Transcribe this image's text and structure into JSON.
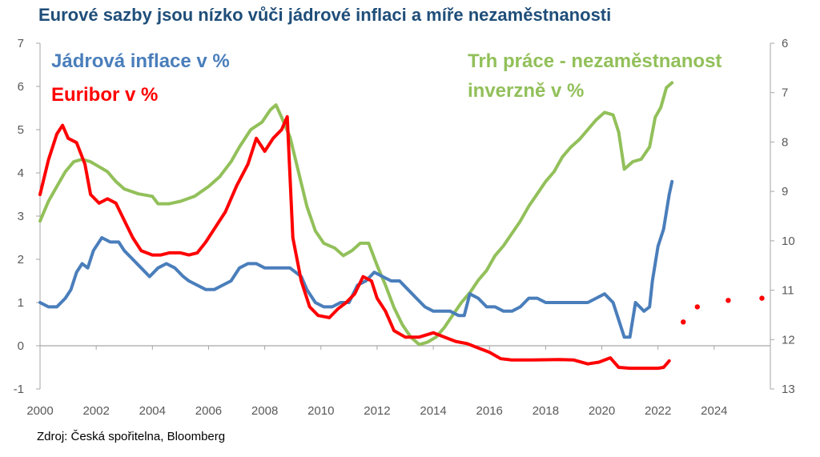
{
  "title": "Eurové sazby jsou nízko vůči jádrové inflaci a míře nezaměstnanosti",
  "source": "Zdroj: Česká spořitelna, Bloomberg",
  "colors": {
    "core_inflation": "#4a7ebb",
    "euribor": "#ff0000",
    "unemployment": "#92c05a",
    "title": "#1f4e79"
  },
  "chart_data": {
    "type": "line",
    "title": "Eurové sazby jsou nízko vůči jádrové inflaci a míře nezaměstnanosti",
    "xlim": [
      2000,
      2026
    ],
    "x_ticks": [
      "2000",
      "2002",
      "2004",
      "2006",
      "2008",
      "2010",
      "2012",
      "2014",
      "2016",
      "2018",
      "2020",
      "2022",
      "2024"
    ],
    "ylim_left": [
      -1,
      7
    ],
    "y_ticks_left": [
      "7",
      "6",
      "5",
      "4",
      "3",
      "2",
      "1",
      "0",
      "-1"
    ],
    "ylim_right": [
      6,
      13
    ],
    "right_axis_inverted": true,
    "y_ticks_right": [
      "6",
      "7",
      "8",
      "9",
      "10",
      "11",
      "12",
      "13"
    ],
    "grid": false,
    "legend": "top-left and top-right",
    "series": [
      {
        "name": "Jádrová inflace v %",
        "axis": "left",
        "color": "#4a7ebb",
        "points": [
          [
            2000.0,
            1.0
          ],
          [
            2000.3,
            0.9
          ],
          [
            2000.6,
            0.9
          ],
          [
            2000.9,
            1.1
          ],
          [
            2001.1,
            1.3
          ],
          [
            2001.3,
            1.7
          ],
          [
            2001.5,
            1.9
          ],
          [
            2001.7,
            1.8
          ],
          [
            2001.9,
            2.2
          ],
          [
            2002.2,
            2.5
          ],
          [
            2002.5,
            2.4
          ],
          [
            2002.8,
            2.4
          ],
          [
            2003.0,
            2.2
          ],
          [
            2003.3,
            2.0
          ],
          [
            2003.6,
            1.8
          ],
          [
            2003.9,
            1.6
          ],
          [
            2004.2,
            1.8
          ],
          [
            2004.5,
            1.9
          ],
          [
            2004.8,
            1.8
          ],
          [
            2005.1,
            1.6
          ],
          [
            2005.3,
            1.5
          ],
          [
            2005.6,
            1.4
          ],
          [
            2005.9,
            1.3
          ],
          [
            2006.2,
            1.3
          ],
          [
            2006.5,
            1.4
          ],
          [
            2006.8,
            1.5
          ],
          [
            2007.1,
            1.8
          ],
          [
            2007.4,
            1.9
          ],
          [
            2007.7,
            1.9
          ],
          [
            2008.0,
            1.8
          ],
          [
            2008.3,
            1.8
          ],
          [
            2008.6,
            1.8
          ],
          [
            2008.9,
            1.8
          ],
          [
            2009.1,
            1.7
          ],
          [
            2009.3,
            1.6
          ],
          [
            2009.5,
            1.3
          ],
          [
            2009.8,
            1.0
          ],
          [
            2010.1,
            0.9
          ],
          [
            2010.4,
            0.9
          ],
          [
            2010.7,
            1.0
          ],
          [
            2011.0,
            1.0
          ],
          [
            2011.3,
            1.4
          ],
          [
            2011.6,
            1.5
          ],
          [
            2011.9,
            1.7
          ],
          [
            2012.2,
            1.6
          ],
          [
            2012.5,
            1.5
          ],
          [
            2012.8,
            1.5
          ],
          [
            2013.1,
            1.3
          ],
          [
            2013.4,
            1.1
          ],
          [
            2013.7,
            0.9
          ],
          [
            2014.0,
            0.8
          ],
          [
            2014.3,
            0.8
          ],
          [
            2014.6,
            0.8
          ],
          [
            2014.9,
            0.7
          ],
          [
            2015.1,
            0.7
          ],
          [
            2015.3,
            1.2
          ],
          [
            2015.6,
            1.1
          ],
          [
            2015.9,
            0.9
          ],
          [
            2016.2,
            0.9
          ],
          [
            2016.5,
            0.8
          ],
          [
            2016.8,
            0.8
          ],
          [
            2017.1,
            0.9
          ],
          [
            2017.4,
            1.1
          ],
          [
            2017.7,
            1.1
          ],
          [
            2018.0,
            1.0
          ],
          [
            2018.3,
            1.0
          ],
          [
            2018.6,
            1.0
          ],
          [
            2018.9,
            1.0
          ],
          [
            2019.2,
            1.0
          ],
          [
            2019.5,
            1.0
          ],
          [
            2019.8,
            1.1
          ],
          [
            2020.1,
            1.2
          ],
          [
            2020.4,
            1.0
          ],
          [
            2020.6,
            0.6
          ],
          [
            2020.8,
            0.2
          ],
          [
            2021.0,
            0.2
          ],
          [
            2021.2,
            1.0
          ],
          [
            2021.5,
            0.8
          ],
          [
            2021.7,
            0.9
          ],
          [
            2021.8,
            1.5
          ],
          [
            2022.0,
            2.3
          ],
          [
            2022.2,
            2.7
          ],
          [
            2022.4,
            3.5
          ],
          [
            2022.5,
            3.8
          ]
        ]
      },
      {
        "name": "Euribor v %",
        "axis": "left",
        "color": "#ff0000",
        "points": [
          [
            2000.0,
            3.5
          ],
          [
            2000.3,
            4.3
          ],
          [
            2000.6,
            4.9
          ],
          [
            2000.8,
            5.1
          ],
          [
            2001.0,
            4.8
          ],
          [
            2001.3,
            4.7
          ],
          [
            2001.6,
            4.2
          ],
          [
            2001.8,
            3.5
          ],
          [
            2002.1,
            3.3
          ],
          [
            2002.4,
            3.4
          ],
          [
            2002.7,
            3.3
          ],
          [
            2003.0,
            2.9
          ],
          [
            2003.3,
            2.5
          ],
          [
            2003.6,
            2.2
          ],
          [
            2004.0,
            2.1
          ],
          [
            2004.3,
            2.1
          ],
          [
            2004.6,
            2.15
          ],
          [
            2005.0,
            2.15
          ],
          [
            2005.3,
            2.1
          ],
          [
            2005.6,
            2.15
          ],
          [
            2005.9,
            2.4
          ],
          [
            2006.2,
            2.7
          ],
          [
            2006.6,
            3.1
          ],
          [
            2007.0,
            3.7
          ],
          [
            2007.4,
            4.2
          ],
          [
            2007.7,
            4.8
          ],
          [
            2008.0,
            4.5
          ],
          [
            2008.3,
            4.8
          ],
          [
            2008.6,
            5.0
          ],
          [
            2008.8,
            5.3
          ],
          [
            2009.0,
            2.5
          ],
          [
            2009.3,
            1.5
          ],
          [
            2009.6,
            0.9
          ],
          [
            2009.9,
            0.7
          ],
          [
            2010.3,
            0.65
          ],
          [
            2010.6,
            0.85
          ],
          [
            2010.9,
            1.0
          ],
          [
            2011.2,
            1.2
          ],
          [
            2011.5,
            1.6
          ],
          [
            2011.8,
            1.5
          ],
          [
            2012.0,
            1.1
          ],
          [
            2012.3,
            0.8
          ],
          [
            2012.6,
            0.35
          ],
          [
            2013.0,
            0.2
          ],
          [
            2013.5,
            0.2
          ],
          [
            2014.0,
            0.3
          ],
          [
            2014.4,
            0.2
          ],
          [
            2014.8,
            0.1
          ],
          [
            2015.2,
            0.05
          ],
          [
            2015.6,
            -0.05
          ],
          [
            2016.0,
            -0.15
          ],
          [
            2016.4,
            -0.3
          ],
          [
            2016.8,
            -0.33
          ],
          [
            2017.5,
            -0.33
          ],
          [
            2018.5,
            -0.32
          ],
          [
            2019.0,
            -0.33
          ],
          [
            2019.5,
            -0.42
          ],
          [
            2019.9,
            -0.38
          ],
          [
            2020.3,
            -0.28
          ],
          [
            2020.6,
            -0.5
          ],
          [
            2021.0,
            -0.52
          ],
          [
            2021.5,
            -0.52
          ],
          [
            2022.0,
            -0.52
          ],
          [
            2022.2,
            -0.5
          ],
          [
            2022.4,
            -0.35
          ]
        ],
        "forecast_points": [
          [
            2022.9,
            0.55
          ],
          [
            2023.4,
            0.9
          ],
          [
            2024.5,
            1.05
          ],
          [
            2025.7,
            1.1
          ]
        ]
      },
      {
        "name": "Trh práce - nezaměstnanost inverzně v %",
        "axis": "right",
        "color": "#92c05a",
        "points": [
          [
            2000.0,
            9.6
          ],
          [
            2000.3,
            9.2
          ],
          [
            2000.6,
            8.9
          ],
          [
            2000.9,
            8.6
          ],
          [
            2001.2,
            8.4
          ],
          [
            2001.5,
            8.35
          ],
          [
            2001.8,
            8.4
          ],
          [
            2002.1,
            8.5
          ],
          [
            2002.4,
            8.6
          ],
          [
            2002.7,
            8.8
          ],
          [
            2003.0,
            8.95
          ],
          [
            2003.5,
            9.05
          ],
          [
            2004.0,
            9.1
          ],
          [
            2004.2,
            9.25
          ],
          [
            2004.6,
            9.25
          ],
          [
            2005.0,
            9.2
          ],
          [
            2005.5,
            9.1
          ],
          [
            2006.0,
            8.9
          ],
          [
            2006.4,
            8.7
          ],
          [
            2006.8,
            8.4
          ],
          [
            2007.1,
            8.1
          ],
          [
            2007.5,
            7.75
          ],
          [
            2007.9,
            7.6
          ],
          [
            2008.2,
            7.35
          ],
          [
            2008.4,
            7.25
          ],
          [
            2008.6,
            7.5
          ],
          [
            2008.9,
            7.9
          ],
          [
            2009.2,
            8.6
          ],
          [
            2009.5,
            9.3
          ],
          [
            2009.8,
            9.8
          ],
          [
            2010.1,
            10.05
          ],
          [
            2010.5,
            10.15
          ],
          [
            2010.8,
            10.3
          ],
          [
            2011.1,
            10.2
          ],
          [
            2011.4,
            10.05
          ],
          [
            2011.7,
            10.05
          ],
          [
            2012.0,
            10.5
          ],
          [
            2012.3,
            10.9
          ],
          [
            2012.6,
            11.35
          ],
          [
            2012.9,
            11.7
          ],
          [
            2013.2,
            11.95
          ],
          [
            2013.5,
            12.1
          ],
          [
            2013.8,
            12.05
          ],
          [
            2014.1,
            11.95
          ],
          [
            2014.4,
            11.75
          ],
          [
            2014.7,
            11.5
          ],
          [
            2015.0,
            11.25
          ],
          [
            2015.3,
            11.05
          ],
          [
            2015.6,
            10.8
          ],
          [
            2015.9,
            10.6
          ],
          [
            2016.2,
            10.3
          ],
          [
            2016.5,
            10.1
          ],
          [
            2016.8,
            9.85
          ],
          [
            2017.1,
            9.6
          ],
          [
            2017.4,
            9.3
          ],
          [
            2017.7,
            9.05
          ],
          [
            2018.0,
            8.8
          ],
          [
            2018.3,
            8.6
          ],
          [
            2018.6,
            8.3
          ],
          [
            2018.9,
            8.1
          ],
          [
            2019.2,
            7.95
          ],
          [
            2019.5,
            7.75
          ],
          [
            2019.8,
            7.55
          ],
          [
            2020.1,
            7.4
          ],
          [
            2020.4,
            7.45
          ],
          [
            2020.6,
            7.8
          ],
          [
            2020.8,
            8.55
          ],
          [
            2021.1,
            8.4
          ],
          [
            2021.4,
            8.35
          ],
          [
            2021.7,
            8.1
          ],
          [
            2021.9,
            7.5
          ],
          [
            2022.1,
            7.3
          ],
          [
            2022.3,
            6.9
          ],
          [
            2022.5,
            6.8
          ]
        ]
      }
    ]
  }
}
